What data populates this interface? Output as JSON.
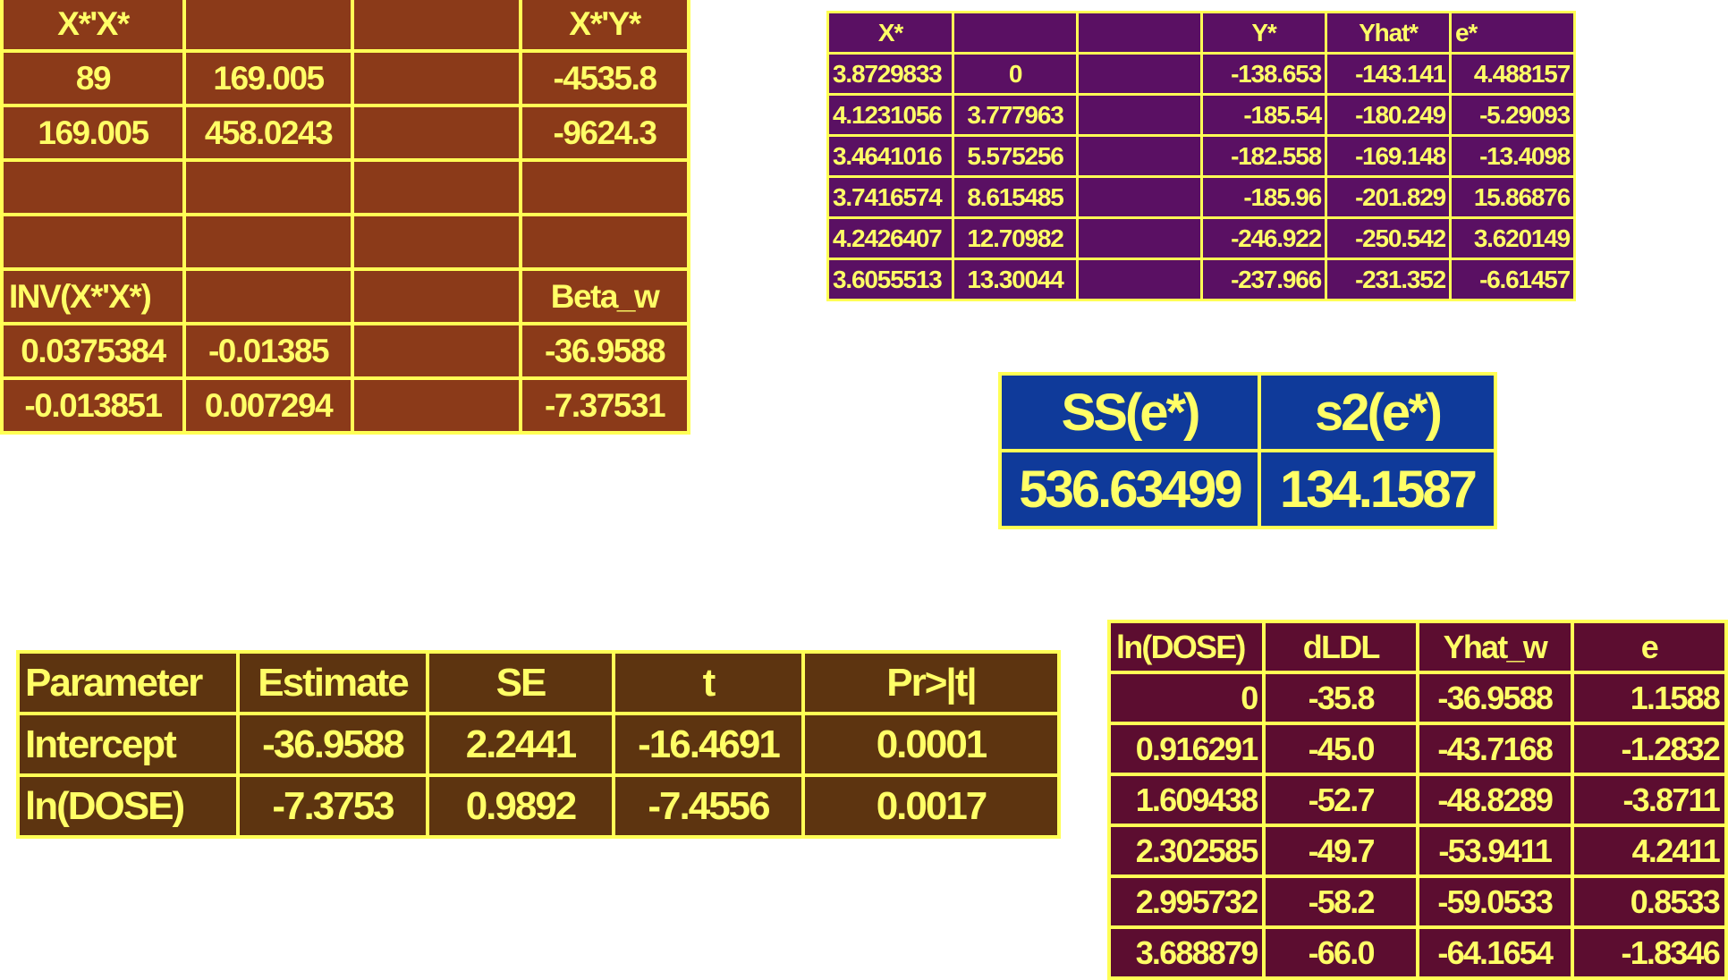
{
  "xtx_table": {
    "rows": [
      [
        "X*'X*",
        "",
        "",
        "X*'Y*"
      ],
      [
        "89",
        "169.005",
        "",
        "-4535.8"
      ],
      [
        "169.005",
        "458.0243",
        "",
        "-9624.3"
      ],
      [
        "",
        "",
        "",
        ""
      ],
      [
        "",
        "",
        "",
        ""
      ],
      [
        "INV(X*'X*)",
        "",
        "",
        "Beta_w"
      ],
      [
        "0.0375384",
        "-0.01385",
        "",
        "-36.9588"
      ],
      [
        "-0.013851",
        "0.007294",
        "",
        "-7.37531"
      ]
    ]
  },
  "transformed_table": {
    "header": [
      "X*",
      "",
      "",
      "Y*",
      "Yhat*",
      "e*"
    ],
    "rows": [
      [
        "3.8729833",
        "0",
        "",
        "-138.653",
        "-143.141",
        "4.488157"
      ],
      [
        "4.1231056",
        "3.777963",
        "",
        "-185.54",
        "-180.249",
        "-5.29093"
      ],
      [
        "3.4641016",
        "5.575256",
        "",
        "-182.558",
        "-169.148",
        "-13.4098"
      ],
      [
        "3.7416574",
        "8.615485",
        "",
        "-185.96",
        "-201.829",
        "15.86876"
      ],
      [
        "4.2426407",
        "12.70982",
        "",
        "-246.922",
        "-250.542",
        "3.620149"
      ],
      [
        "3.6055513",
        "13.30044",
        "",
        "-237.966",
        "-231.352",
        "-6.61457"
      ]
    ]
  },
  "ss_table": {
    "header": [
      "SS(e*)",
      "s2(e*)"
    ],
    "values": [
      "536.63499",
      "134.1587"
    ]
  },
  "param_table": {
    "header": [
      "Parameter",
      "Estimate",
      "SE",
      "t",
      "Pr>|t|"
    ],
    "rows": [
      [
        "Intercept",
        "-36.9588",
        "2.2441",
        "-16.4691",
        "0.0001"
      ],
      [
        "ln(DOSE)",
        "-7.3753",
        "0.9892",
        "-7.4556",
        "0.0017"
      ]
    ]
  },
  "dose_table": {
    "header": [
      "ln(DOSE)",
      "dLDL",
      "Yhat_w",
      "e"
    ],
    "rows": [
      [
        "0",
        "-35.8",
        "-36.9588",
        "1.1588"
      ],
      [
        "0.916291",
        "-45.0",
        "-43.7168",
        "-1.2832"
      ],
      [
        "1.609438",
        "-52.7",
        "-48.8289",
        "-3.8711"
      ],
      [
        "2.302585",
        "-49.7",
        "-53.9411",
        "4.2411"
      ],
      [
        "2.995732",
        "-58.2",
        "-59.0533",
        "0.8533"
      ],
      [
        "3.688879",
        "-66.0",
        "-64.1654",
        "-1.8346"
      ]
    ]
  }
}
